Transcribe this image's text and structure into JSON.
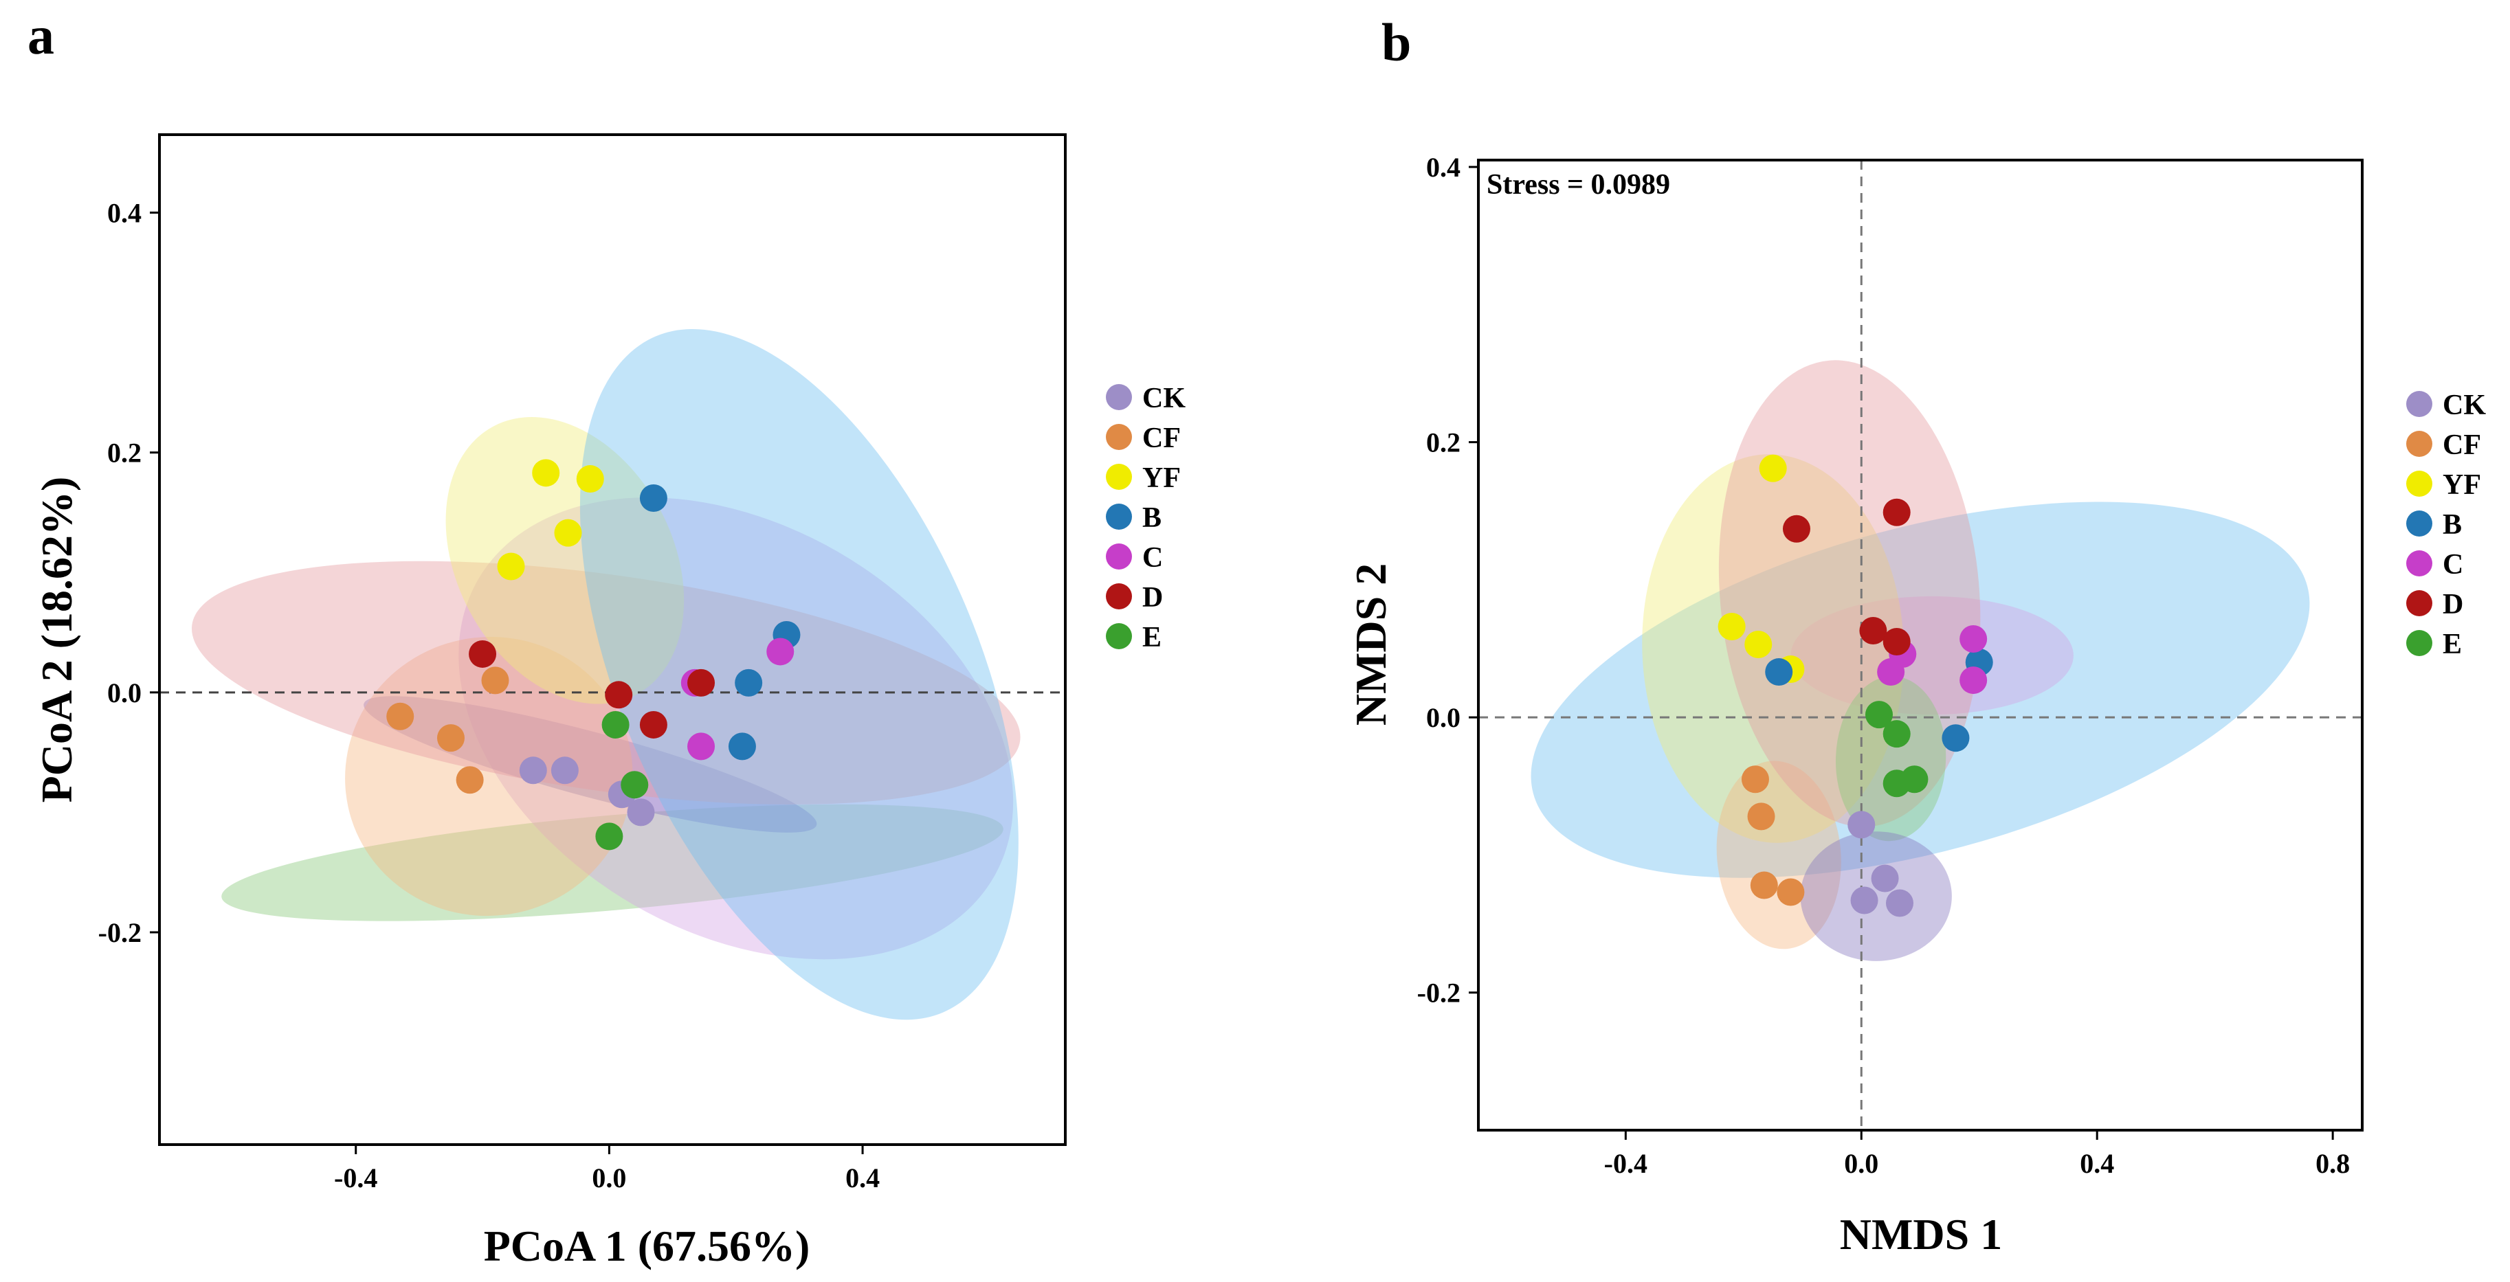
{
  "group_colors": {
    "CK": "#9d8ec7",
    "CF": "#e08a45",
    "YF": "#f0ec00",
    "B": "#2377b4",
    "C": "#c63ec9",
    "D": "#b01515",
    "E": "#3aa02e"
  },
  "ellipse_colors": {
    "CK": "#8678bf",
    "CF": "#f5b784",
    "YF": "#f0ec79",
    "B": "#6ebff0",
    "C": "#d5a4e4",
    "D": "#e49a9f",
    "E": "#88c97a"
  },
  "legend": [
    "CK",
    "CF",
    "YF",
    "B",
    "C",
    "D",
    "E"
  ],
  "chart_data": [
    {
      "type": "scatter",
      "panel": "a",
      "title": "",
      "xlabel": "PCoA 1 (67.56%)",
      "ylabel": "PCoA 2 (18.62%)",
      "xlim": [
        -0.71,
        0.72
      ],
      "ylim": [
        -0.377,
        0.465
      ],
      "xticks": [
        -0.4,
        0.0,
        0.4
      ],
      "xtick_labels": [
        "-0.4",
        "0.0",
        "0.4"
      ],
      "yticks": [
        -0.2,
        0.0,
        0.2,
        0.4
      ],
      "ytick_labels": [
        "-0.2",
        "0.0",
        "0.2",
        "0.4"
      ],
      "reference_lines": {
        "h": 0.0
      },
      "ellipses": [
        {
          "group": "E",
          "cx": 0.005,
          "cy": -0.142,
          "rx": 0.075,
          "ry": 0.327,
          "angle": 95
        },
        {
          "group": "C",
          "cx": 0.2,
          "cy": -0.03,
          "rx": 0.47,
          "ry": 0.17,
          "angle": 150
        },
        {
          "group": "CK",
          "cx": -0.03,
          "cy": -0.06,
          "rx": 0.37,
          "ry": 0.027,
          "angle": 165
        },
        {
          "group": "CF",
          "cx": -0.19,
          "cy": -0.07,
          "rx": 0.22,
          "ry": 0.12,
          "angle": 102
        },
        {
          "group": "D",
          "cx": -0.005,
          "cy": 0.008,
          "rx": 0.66,
          "ry": 0.09,
          "angle": 172
        },
        {
          "group": "YF",
          "cx": -0.07,
          "cy": 0.11,
          "rx": 0.24,
          "ry": 0.09,
          "angle": 118
        },
        {
          "group": "B",
          "cx": 0.3,
          "cy": 0.015,
          "rx": 0.58,
          "ry": 0.15,
          "angle": 113
        }
      ],
      "series": [
        {
          "name": "CK",
          "x": [
            -0.12,
            -0.07,
            0.02,
            0.05
          ],
          "y": [
            -0.065,
            -0.065,
            -0.085,
            -0.1
          ]
        },
        {
          "name": "CF",
          "x": [
            -0.33,
            -0.25,
            -0.22,
            -0.18
          ],
          "y": [
            -0.02,
            -0.038,
            -0.073,
            0.01
          ]
        },
        {
          "name": "YF",
          "x": [
            -0.1,
            -0.03,
            -0.065,
            -0.155
          ],
          "y": [
            0.183,
            0.178,
            0.133,
            0.105
          ]
        },
        {
          "name": "B",
          "x": [
            0.07,
            0.28,
            0.22,
            0.21
          ],
          "y": [
            0.162,
            0.048,
            0.008,
            -0.045
          ]
        },
        {
          "name": "C",
          "x": [
            0.27,
            0.135,
            0.145
          ],
          "y": [
            0.034,
            0.008,
            -0.045
          ]
        },
        {
          "name": "D",
          "x": [
            -0.2,
            0.015,
            0.07,
            0.145
          ],
          "y": [
            0.032,
            -0.002,
            -0.027,
            0.008
          ]
        },
        {
          "name": "E",
          "x": [
            0.01,
            0.04,
            0.0
          ],
          "y": [
            -0.027,
            -0.077,
            -0.12
          ]
        }
      ]
    },
    {
      "type": "scatter",
      "panel": "b",
      "title": "",
      "xlabel": "NMDS 1",
      "ylabel": "NMDS 2",
      "annotation": "Stress = 0.0989",
      "xlim": [
        -0.65,
        0.85
      ],
      "ylim": [
        -0.3,
        0.405
      ],
      "xticks": [
        -0.4,
        0.0,
        0.4,
        0.8
      ],
      "xtick_labels": [
        "-0.4",
        "0.0",
        "0.4",
        "0.8"
      ],
      "yticks": [
        -0.2,
        0.0,
        0.2,
        0.4
      ],
      "ytick_labels": [
        "-0.2",
        "0.0",
        "0.2",
        "0.4"
      ],
      "reference_lines": {
        "h": 0.0,
        "v": 0.0
      },
      "ellipses": [
        {
          "group": "B",
          "cx": 0.1,
          "cy": 0.02,
          "rx": 0.68,
          "ry": 0.118,
          "angle": 15
        },
        {
          "group": "C",
          "cx": 0.12,
          "cy": 0.045,
          "rx": 0.24,
          "ry": 0.043,
          "angle": 0
        },
        {
          "group": "YF",
          "cx": -0.15,
          "cy": 0.05,
          "rx": 0.33,
          "ry": 0.095,
          "angle": 92
        },
        {
          "group": "CF",
          "cx": -0.14,
          "cy": -0.1,
          "rx": 0.16,
          "ry": 0.045,
          "angle": 95
        },
        {
          "group": "D",
          "cx": -0.02,
          "cy": 0.09,
          "rx": 0.22,
          "ry": 0.17,
          "angle": 5
        },
        {
          "group": "E",
          "cx": 0.05,
          "cy": -0.03,
          "rx": 0.14,
          "ry": 0.04,
          "angle": 88
        },
        {
          "group": "CK",
          "cx": 0.025,
          "cy": -0.13,
          "rx": 0.11,
          "ry": 0.055,
          "angle": 90
        }
      ],
      "series": [
        {
          "name": "CK",
          "x": [
            0.0,
            0.04,
            0.005,
            0.065
          ],
          "y": [
            -0.078,
            -0.117,
            -0.133,
            -0.135
          ]
        },
        {
          "name": "CF",
          "x": [
            -0.18,
            -0.17,
            -0.165,
            -0.12
          ],
          "y": [
            -0.045,
            -0.072,
            -0.122,
            -0.127
          ]
        },
        {
          "name": "YF",
          "x": [
            -0.15,
            -0.22,
            -0.175,
            -0.12
          ],
          "y": [
            0.181,
            0.066,
            0.053,
            0.035
          ]
        },
        {
          "name": "B",
          "x": [
            -0.14,
            0.2,
            0.16
          ],
          "y": [
            0.033,
            0.04,
            -0.015
          ]
        },
        {
          "name": "C",
          "x": [
            0.19,
            0.07,
            0.05,
            0.19
          ],
          "y": [
            0.057,
            0.046,
            0.033,
            0.027
          ]
        },
        {
          "name": "D",
          "x": [
            -0.11,
            0.06,
            0.02,
            0.06
          ],
          "y": [
            0.137,
            0.149,
            0.063,
            0.055
          ]
        },
        {
          "name": "E",
          "x": [
            0.03,
            0.06,
            0.09,
            0.06
          ],
          "y": [
            0.002,
            -0.012,
            -0.045,
            -0.048
          ]
        }
      ]
    }
  ]
}
